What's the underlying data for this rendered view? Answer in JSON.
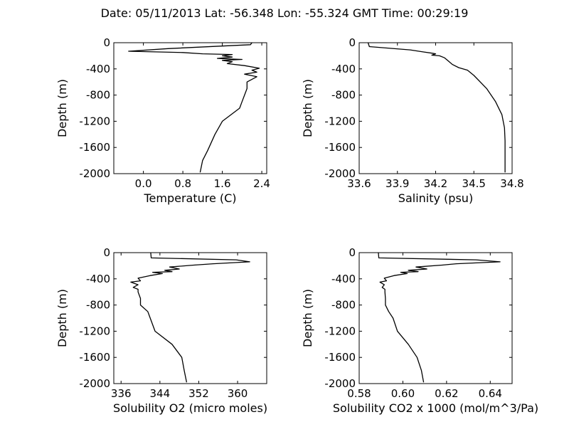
{
  "figure": {
    "title": "Date: 05/11/2013  Lat:  -56.348 Lon:  -55.324  GMT Time: 00:29:19"
  },
  "chart_data": [
    {
      "type": "line",
      "xlabel": "Temperature (C)",
      "ylabel": "Depth (m)",
      "xlim": [
        -0.6,
        2.5
      ],
      "ylim": [
        -2000,
        0
      ],
      "xticks": [
        0.0,
        0.8,
        1.6,
        2.4
      ],
      "xtick_labels": [
        "0.0",
        "0.8",
        "1.6",
        "2.4"
      ],
      "yticks": [
        0,
        -400,
        -800,
        -1200,
        -1600,
        -2000
      ],
      "ytick_labels": [
        "0",
        "-400",
        "-800",
        "-1200",
        "-1600",
        "-2000"
      ],
      "grid": false,
      "series": [
        {
          "x": [
            2.2,
            2.17,
            0.5,
            -0.3,
            0.8,
            1.2,
            1.8,
            1.6,
            1.8,
            1.5,
            2.0,
            1.6,
            1.8,
            1.7,
            2.05,
            2.35,
            2.2,
            2.3,
            2.05,
            2.3,
            2.1,
            2.1,
            2.05,
            2.0,
            1.95,
            1.6,
            1.45,
            1.3,
            1.2,
            1.15
          ],
          "y": [
            0,
            -30,
            -90,
            -130,
            -150,
            -170,
            -180,
            -200,
            -220,
            -240,
            -255,
            -270,
            -290,
            -320,
            -350,
            -390,
            -420,
            -450,
            -480,
            -520,
            -600,
            -700,
            -800,
            -900,
            -1000,
            -1200,
            -1400,
            -1650,
            -1800,
            -1980
          ]
        }
      ]
    },
    {
      "type": "line",
      "xlabel": "Salinity (psu)",
      "ylabel": "Depth (m)",
      "xlim": [
        33.6,
        34.8
      ],
      "ylim": [
        -2000,
        0
      ],
      "xticks": [
        33.6,
        33.9,
        34.2,
        34.5,
        34.8
      ],
      "xtick_labels": [
        "33.6",
        "33.9",
        "34.2",
        "34.5",
        "34.8"
      ],
      "yticks": [
        0,
        -400,
        -800,
        -1200,
        -1600,
        -2000
      ],
      "ytick_labels": [
        "0",
        "-400",
        "-800",
        "-1200",
        "-1600",
        "-2000"
      ],
      "grid": false,
      "series": [
        {
          "x": [
            33.67,
            33.68,
            34.0,
            34.1,
            34.17,
            34.2,
            34.17,
            34.23,
            34.27,
            34.3,
            34.33,
            34.38,
            34.45,
            34.5,
            34.6,
            34.67,
            34.72,
            34.74,
            34.745,
            34.745,
            34.745
          ],
          "y": [
            0,
            -60,
            -110,
            -140,
            -160,
            -170,
            -190,
            -200,
            -230,
            -280,
            -330,
            -380,
            -420,
            -500,
            -700,
            -900,
            -1100,
            -1300,
            -1500,
            -1800,
            -1980
          ]
        }
      ]
    },
    {
      "type": "line",
      "xlabel": "Solubility O2 (micro moles)",
      "ylabel": "Depth (m)",
      "xlim": [
        334.5,
        366
      ],
      "ylim": [
        -2000,
        0
      ],
      "xticks": [
        336,
        344,
        352,
        360
      ],
      "xtick_labels": [
        "336",
        "344",
        "352",
        "360"
      ],
      "yticks": [
        0,
        -400,
        -800,
        -1200,
        -1600,
        -2000
      ],
      "ytick_labels": [
        "0",
        "-400",
        "-800",
        "-1200",
        "-1600",
        "-2000"
      ],
      "grid": false,
      "series": [
        {
          "x": [
            342.1,
            342.2,
            359.7,
            362.5,
            355,
            351,
            346,
            348,
            345,
            346.5,
            342.5,
            344.5,
            342,
            339.5,
            340,
            338,
            339.5,
            338.5,
            339.5,
            339.5,
            340,
            340,
            341.5,
            342,
            343,
            346.5,
            348.5,
            349,
            349.5
          ],
          "y": [
            0,
            -80,
            -110,
            -140,
            -170,
            -190,
            -220,
            -250,
            -270,
            -290,
            -300,
            -320,
            -350,
            -390,
            -430,
            -450,
            -490,
            -530,
            -560,
            -600,
            -700,
            -800,
            -900,
            -1000,
            -1200,
            -1400,
            -1600,
            -1800,
            -1980
          ]
        }
      ]
    },
    {
      "type": "line",
      "xlabel": "Solubility CO2 x 1000 (mol/m^3/Pa)",
      "ylabel": "Depth (m)",
      "xlim": [
        0.58,
        0.65
      ],
      "ylim": [
        -2000,
        0
      ],
      "xticks": [
        0.58,
        0.6,
        0.62,
        0.64
      ],
      "xtick_labels": [
        "0.58",
        "0.60",
        "0.62",
        "0.64"
      ],
      "yticks": [
        0,
        -400,
        -800,
        -1200,
        -1600,
        -2000
      ],
      "ytick_labels": [
        "0",
        "-400",
        "-800",
        "-1200",
        "-1600",
        "-2000"
      ],
      "grid": false,
      "series": [
        {
          "x": [
            0.5888,
            0.589,
            0.6335,
            0.6445,
            0.6245,
            0.618,
            0.606,
            0.611,
            0.6025,
            0.607,
            0.599,
            0.602,
            0.596,
            0.5915,
            0.5925,
            0.5895,
            0.5915,
            0.5905,
            0.5918,
            0.5918,
            0.592,
            0.592,
            0.5935,
            0.5955,
            0.5975,
            0.6025,
            0.6065,
            0.6085,
            0.6095
          ],
          "y": [
            0,
            -80,
            -110,
            -140,
            -170,
            -190,
            -220,
            -250,
            -270,
            -290,
            -300,
            -320,
            -350,
            -390,
            -430,
            -450,
            -490,
            -530,
            -560,
            -600,
            -700,
            -800,
            -900,
            -1000,
            -1200,
            -1400,
            -1600,
            -1800,
            -1980
          ]
        }
      ]
    }
  ]
}
